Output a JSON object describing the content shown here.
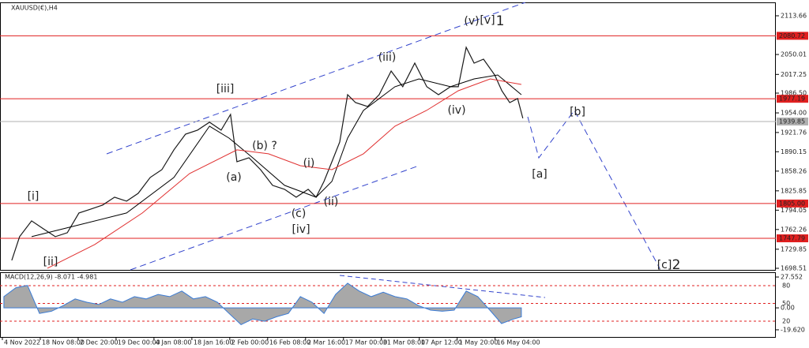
{
  "chart_data": [
    {
      "type": "line",
      "title": "XAUUSD(€),H4",
      "xlim": [
        -4.63,
        202.1
      ],
      "xticks": [
        {
          "value": -4,
          "label": "4 Nov 2022"
        },
        {
          "value": 6.1,
          "label": "18 Nov 08:00"
        },
        {
          "value": 16.2,
          "label": "2 Dec 20:00"
        },
        {
          "value": 26.3,
          "label": "19 Dec 00:00"
        },
        {
          "value": 36.4,
          "label": "4 Jan 08:00"
        },
        {
          "value": 46.5,
          "label": "18 Jan 16:00"
        },
        {
          "value": 56.6,
          "label": "2 Feb 00:00"
        },
        {
          "value": 66.7,
          "label": "16 Feb 08:00"
        },
        {
          "value": 76.8,
          "label": "2 Mar 16:00"
        },
        {
          "value": 86.9,
          "label": "17 Mar 00:00"
        },
        {
          "value": 97,
          "label": "31 Mar 08:00"
        },
        {
          "value": 107.1,
          "label": "17 Apr 12:00"
        },
        {
          "value": 117.2,
          "label": "1 May 20:00"
        },
        {
          "value": 127.3,
          "label": "16 May 04:00"
        }
      ],
      "ylim": [
        1694.6,
        2139.6
      ],
      "yticks": [
        2113.66,
        2050.01,
        2017.25,
        {
          "value": 1986.5,
          "label": "1986.50"
        },
        {
          "value": 1954,
          "label": "1954.00"
        },
        1921.76,
        1890.15,
        1858.26,
        1825.85,
        1794.05,
        1762.26,
        1729.85,
        1698.51
      ],
      "levels": [
        {
          "value": 2080.72,
          "color": "#e02020"
        },
        {
          "value": 1977.19,
          "color": "#e02020"
        },
        {
          "value": 1939.85,
          "color": "#b0b0b0"
        },
        {
          "value": 1805,
          "label": "1805.00",
          "color": "#e02020"
        },
        {
          "value": 1747.79,
          "color": "#e02020"
        }
      ],
      "series": [
        {
          "color": "#1a1a1a",
          "x": [
            -1.5,
            0.6,
            3.8,
            6.9,
            10.1,
            13.3,
            16.4,
            19.6,
            22.7,
            25.9,
            29.1,
            32.2,
            35.4,
            38.5,
            41.7,
            44.8,
            48,
            51.2,
            54.3,
            56.8,
            58.5,
            61.7,
            64.8,
            68,
            71.2,
            74.3,
            77.5,
            79.6,
            81.7,
            83.8,
            85.9,
            88,
            90.1,
            93.3,
            96.4,
            99.6,
            102.7,
            105.9,
            109.1,
            112.2,
            115.4,
            117.5,
            119.6,
            121.7,
            124.2,
            127.2,
            129.1,
            131.2,
            133.3,
            134.7
          ],
          "values": [
            1711.6,
            1750.5,
            1776.4,
            1763.5,
            1750.5,
            1757,
            1789.4,
            1795.9,
            1802.4,
            1815.4,
            1808.9,
            1821.8,
            1847.8,
            1860.7,
            1893.2,
            1919.1,
            1925.6,
            1938.6,
            1925.6,
            1951.5,
            1873.7,
            1880.2,
            1860.7,
            1834.8,
            1828.3,
            1815.4,
            1828.3,
            1815.4,
            1841.3,
            1873.7,
            1906.1,
            1983.9,
            1971,
            1964.5,
            1983.9,
            2022.9,
            1997,
            2035.8,
            1997,
            1983.9,
            1997,
            1997,
            2061.8,
            2035.8,
            2042.3,
            2016.4,
            1990.4,
            1971,
            1977.5,
            1945.1
          ]
        },
        {
          "color": "#000000",
          "x": [
            3.8,
            16.4,
            29.1,
            41.7,
            51.2,
            56.4,
            62.7,
            71.2,
            79.6,
            83.8,
            88,
            92.2,
            100.6,
            107,
            115.4,
            121.7,
            128,
            134.3
          ],
          "values": [
            1750.5,
            1769.9,
            1789.4,
            1847.8,
            1932.1,
            1912.6,
            1880.2,
            1834.8,
            1815.4,
            1841.3,
            1912.6,
            1958,
            1997,
            2009.9,
            1997,
            2009.9,
            2016.4,
            1983.9
          ]
        },
        {
          "color": "#e03030",
          "x": [
            8,
            20.6,
            33.3,
            45.9,
            58.5,
            66.9,
            75.4,
            83.8,
            92.2,
            100.6,
            109,
            117.5,
            126,
            134.3
          ],
          "values": [
            1698.6,
            1737.5,
            1789.4,
            1854.3,
            1893.2,
            1886.7,
            1867.2,
            1860.7,
            1886.7,
            1932.1,
            1958,
            1990.4,
            2009.9,
            2000.8
          ]
        }
      ],
      "annotations": [
        {
          "text": "(v)",
          "color": "#3344cc"
        },
        {
          "text": "[v]",
          "color": "#339933"
        },
        {
          "text": "1",
          "color": "#dd2222"
        },
        {
          "text": "(iii)",
          "color": "#3344cc"
        },
        {
          "text": "[iii]",
          "color": "#339933"
        },
        {
          "text": "(iv)",
          "color": "#3344cc"
        },
        {
          "text": "(b) ?",
          "color": "#3344cc"
        },
        {
          "text": "(a)",
          "color": "#3344cc"
        },
        {
          "text": "(i)",
          "color": "#3344cc"
        },
        {
          "text": "(c)",
          "color": "#3344cc"
        },
        {
          "text": "(ii)",
          "color": "#3344cc"
        },
        {
          "text": "[iv]",
          "color": "#339933"
        },
        {
          "text": "[i]",
          "color": "#339933"
        },
        {
          "text": "[ii]",
          "color": "#339933"
        },
        {
          "text": "[a]",
          "color": "#339933"
        },
        {
          "text": "[b]",
          "color": "#339933"
        },
        {
          "text": "[c]",
          "color": "#339933"
        },
        {
          "text": "2",
          "color": "#dd2222"
        }
      ]
    },
    {
      "type": "area",
      "title": "MACD(12,26,9) -8.071 -4.981",
      "xlim": [
        -4.63,
        202.1
      ],
      "ylim": [
        -26.7,
        31.8
      ],
      "yticks": [
        27.552,
        {
          "value": 0,
          "label": "0.00"
        },
        {
          "value": -19.62,
          "label": "-19.620"
        }
      ],
      "y2lim": [
        -8,
        102.7
      ],
      "y2ticks": [
        80,
        50,
        20
      ],
      "color": "#a8a8a8",
      "x": [
        -3.6,
        -0.4,
        2.7,
        5.9,
        9.1,
        12.2,
        15.4,
        18.5,
        21.7,
        24.8,
        28,
        31.2,
        34.3,
        37.5,
        40.6,
        43.8,
        46.9,
        50.1,
        53.3,
        56.4,
        59.6,
        62.7,
        65.9,
        69,
        72.2,
        75.4,
        78.5,
        81.7,
        84.8,
        88,
        91.1,
        94.3,
        97.5,
        100.6,
        103.8,
        106.9,
        110.1,
        113.2,
        116.4,
        119.6,
        122.7,
        125.9,
        129,
        132.2,
        134.3
      ],
      "values": [
        10,
        18,
        20,
        -5,
        -3,
        2,
        8,
        5,
        3,
        8,
        5,
        10,
        8,
        12,
        10,
        15,
        8,
        10,
        5,
        -5,
        -15,
        -10,
        -12,
        -8,
        -5,
        10,
        5,
        -5,
        12,
        22,
        15,
        10,
        14,
        10,
        8,
        2,
        -2,
        -3,
        -2,
        15,
        10,
        -2,
        -14,
        -10,
        -8
      ]
    }
  ]
}
